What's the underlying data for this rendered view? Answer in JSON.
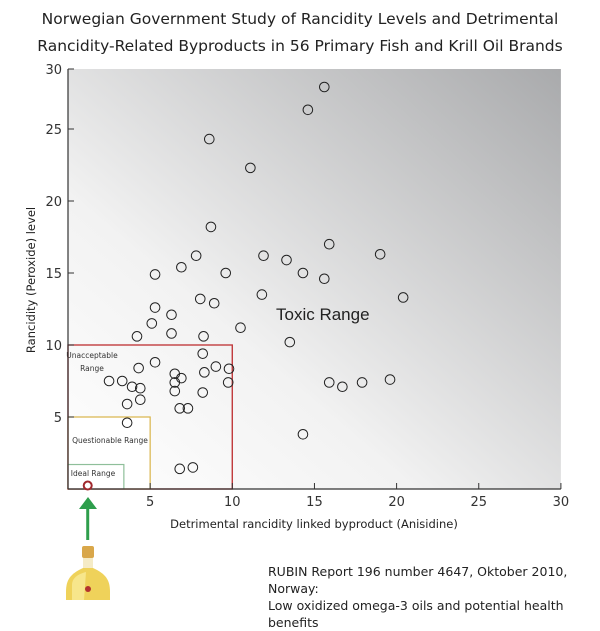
{
  "chart_data": {
    "type": "scatter",
    "title": [
      "Norwegian Government Study of Rancidity Levels and Detrimental",
      "Rancidity-Related Byproducts in 56 Primary Fish and Krill Oil Brands"
    ],
    "xlabel": "Detrimental rancidity linked byproduct (Anisidine)",
    "ylabel": "Rancidity (Peroxide) level",
    "xlim": [
      0,
      30
    ],
    "ylim": [
      0,
      30
    ],
    "xticks": [
      5,
      10,
      15,
      20,
      25,
      30
    ],
    "yticks": [
      5,
      10,
      15,
      20,
      25,
      30
    ],
    "grid": false,
    "background": "gradient white (lower-left) to gray (upper-right)",
    "points": [
      [
        5.3,
        12.6
      ],
      [
        6.3,
        12.1
      ],
      [
        8.05,
        13.2
      ],
      [
        8.9,
        12.9
      ],
      [
        5.1,
        11.5
      ],
      [
        4.2,
        10.6
      ],
      [
        6.3,
        10.8
      ],
      [
        8.25,
        10.6
      ],
      [
        10.5,
        11.2
      ],
      [
        8.2,
        9.4
      ],
      [
        5.3,
        8.8
      ],
      [
        4.3,
        8.4
      ],
      [
        6.5,
        8.0
      ],
      [
        6.9,
        7.7
      ],
      [
        9.0,
        8.5
      ],
      [
        9.8,
        8.35
      ],
      [
        8.3,
        8.1
      ],
      [
        2.5,
        7.5
      ],
      [
        3.3,
        7.5
      ],
      [
        3.9,
        7.1
      ],
      [
        4.4,
        7.0
      ],
      [
        6.5,
        7.4
      ],
      [
        6.5,
        6.8
      ],
      [
        9.75,
        7.4
      ],
      [
        8.2,
        6.7
      ],
      [
        3.6,
        5.9
      ],
      [
        4.4,
        6.2
      ],
      [
        6.8,
        5.6
      ],
      [
        7.3,
        5.6
      ],
      [
        3.6,
        4.6
      ],
      [
        6.8,
        1.4
      ],
      [
        7.6,
        1.5
      ],
      [
        15.6,
        28.5
      ],
      [
        14.6,
        26.6
      ],
      [
        8.6,
        24.3
      ],
      [
        11.1,
        22.3
      ],
      [
        8.7,
        18.2
      ],
      [
        15.9,
        17.0
      ],
      [
        19.0,
        16.3
      ],
      [
        7.8,
        16.2
      ],
      [
        11.9,
        16.2
      ],
      [
        13.3,
        15.9
      ],
      [
        6.9,
        15.4
      ],
      [
        9.6,
        15.0
      ],
      [
        14.3,
        15.0
      ],
      [
        5.3,
        14.9
      ],
      [
        15.6,
        14.6
      ],
      [
        11.8,
        13.5
      ],
      [
        20.4,
        13.3
      ],
      [
        13.5,
        10.2
      ],
      [
        15.9,
        7.4
      ],
      [
        16.7,
        7.1
      ],
      [
        17.9,
        7.4
      ],
      [
        19.6,
        7.6
      ],
      [
        14.3,
        3.8
      ]
    ],
    "highlight_point": {
      "x": 1.2,
      "y": 0.1,
      "color": "#a0282d"
    },
    "regions": [
      {
        "label": "Unacceptable Range",
        "x": [
          0,
          10
        ],
        "y": [
          0,
          10
        ],
        "color": "#c0393b"
      },
      {
        "label": "Questionable Range",
        "x": [
          0,
          5
        ],
        "y": [
          0,
          5
        ],
        "color": "#d9b44a"
      },
      {
        "label": "Ideal Range",
        "x": [
          0,
          3.4
        ],
        "y": [
          0,
          1.7
        ],
        "color": "#8fbf9a"
      }
    ],
    "annotation": "Toxic Range",
    "arrow_color": "#2e9e4c"
  },
  "source": {
    "line1": "RUBIN Report 196 number 4647, Oktober 2010, Norway:",
    "line2": "Low oxidized omega-3 oils and potential health benefits"
  }
}
